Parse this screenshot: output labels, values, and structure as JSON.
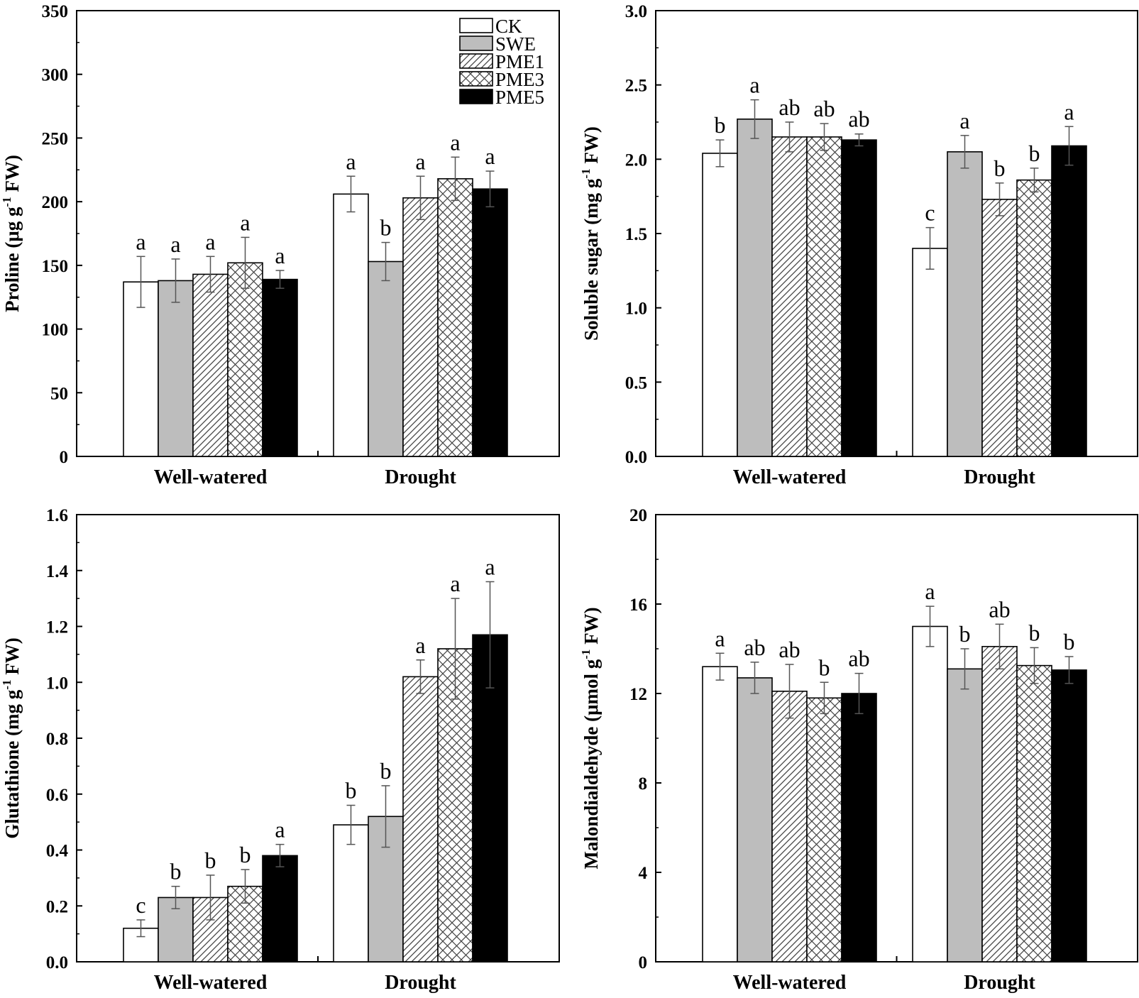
{
  "legend": [
    {
      "name": "CK",
      "pattern": "white"
    },
    {
      "name": "SWE",
      "pattern": "gray"
    },
    {
      "name": "PME1",
      "pattern": "diagonal"
    },
    {
      "name": "PME3",
      "pattern": "crosshatch"
    },
    {
      "name": "PME5",
      "pattern": "black"
    }
  ],
  "colors": {
    "gray_fill": "#bdbdbd",
    "black_fill": "#000000",
    "error_bar": "#555555"
  },
  "chart_data": [
    {
      "type": "bar",
      "title": "",
      "ylabel_main": "Proline (μg g",
      "ylabel_sup": "-1",
      "ylabel_tail": " FW)",
      "categories": [
        "Well-watered",
        "Drought"
      ],
      "ylim": [
        0,
        350
      ],
      "yticks": [
        "0",
        "50",
        "100",
        "150",
        "200",
        "250",
        "300",
        "350"
      ],
      "series": [
        {
          "name": "CK",
          "values": [
            137,
            206
          ],
          "errors": [
            20,
            14
          ],
          "letters": [
            "a",
            "a"
          ]
        },
        {
          "name": "SWE",
          "values": [
            138,
            153
          ],
          "errors": [
            17,
            15
          ],
          "letters": [
            "a",
            "b"
          ]
        },
        {
          "name": "PME1",
          "values": [
            143,
            203
          ],
          "errors": [
            14,
            17
          ],
          "letters": [
            "a",
            "a"
          ]
        },
        {
          "name": "PME3",
          "values": [
            152,
            218
          ],
          "errors": [
            20,
            17
          ],
          "letters": [
            "a",
            "a"
          ]
        },
        {
          "name": "PME5",
          "values": [
            139,
            210
          ],
          "errors": [
            7,
            14
          ],
          "letters": [
            "a",
            "a"
          ]
        }
      ],
      "legend_location": "top-right"
    },
    {
      "type": "bar",
      "title": "",
      "ylabel_main": "Soluble sugar (mg g",
      "ylabel_sup": "-1",
      "ylabel_tail": " FW)",
      "categories": [
        "Well-watered",
        "Drought"
      ],
      "ylim": [
        0,
        3.0
      ],
      "yticks": [
        "0.0",
        "0.5",
        "1.0",
        "1.5",
        "2.0",
        "2.5",
        "3.0"
      ],
      "series": [
        {
          "name": "CK",
          "values": [
            2.04,
            1.4
          ],
          "errors": [
            0.09,
            0.14
          ],
          "letters": [
            "b",
            "c"
          ]
        },
        {
          "name": "SWE",
          "values": [
            2.27,
            2.05
          ],
          "errors": [
            0.13,
            0.11
          ],
          "letters": [
            "a",
            "a"
          ]
        },
        {
          "name": "PME1",
          "values": [
            2.15,
            1.73
          ],
          "errors": [
            0.1,
            0.11
          ],
          "letters": [
            "ab",
            "b"
          ]
        },
        {
          "name": "PME3",
          "values": [
            2.15,
            1.86
          ],
          "errors": [
            0.09,
            0.08
          ],
          "letters": [
            "ab",
            "b"
          ]
        },
        {
          "name": "PME5",
          "values": [
            2.13,
            2.09
          ],
          "errors": [
            0.04,
            0.13
          ],
          "letters": [
            "ab",
            "a"
          ]
        }
      ]
    },
    {
      "type": "bar",
      "title": "",
      "ylabel_main": "Glutathione (mg g",
      "ylabel_sup": "-1",
      "ylabel_tail": " FW)",
      "categories": [
        "Well-watered",
        "Drought"
      ],
      "ylim": [
        0,
        1.6
      ],
      "yticks": [
        "0.0",
        "0.2",
        "0.4",
        "0.6",
        "0.8",
        "1.0",
        "1.2",
        "1.4",
        "1.6"
      ],
      "series": [
        {
          "name": "CK",
          "values": [
            0.12,
            0.49
          ],
          "errors": [
            0.03,
            0.07
          ],
          "letters": [
            "c",
            "b"
          ]
        },
        {
          "name": "SWE",
          "values": [
            0.23,
            0.52
          ],
          "errors": [
            0.04,
            0.11
          ],
          "letters": [
            "b",
            "b"
          ]
        },
        {
          "name": "PME1",
          "values": [
            0.23,
            1.02
          ],
          "errors": [
            0.08,
            0.06
          ],
          "letters": [
            "b",
            "a"
          ]
        },
        {
          "name": "PME3",
          "values": [
            0.27,
            1.12
          ],
          "errors": [
            0.06,
            0.18
          ],
          "letters": [
            "b",
            "a"
          ]
        },
        {
          "name": "PME5",
          "values": [
            0.38,
            1.17
          ],
          "errors": [
            0.04,
            0.19
          ],
          "letters": [
            "a",
            "a"
          ]
        }
      ]
    },
    {
      "type": "bar",
      "title": "",
      "ylabel_main": "Malondialdehyde (μmol g",
      "ylabel_sup": "-1",
      "ylabel_tail": " FW)",
      "categories": [
        "Well-watered",
        "Drought"
      ],
      "ylim": [
        0,
        20
      ],
      "yticks": [
        "0",
        "4",
        "8",
        "12",
        "16",
        "20"
      ],
      "series": [
        {
          "name": "CK",
          "values": [
            13.2,
            15.0
          ],
          "errors": [
            0.6,
            0.9
          ],
          "letters": [
            "a",
            "a"
          ]
        },
        {
          "name": "SWE",
          "values": [
            12.7,
            13.1
          ],
          "errors": [
            0.7,
            0.9
          ],
          "letters": [
            "ab",
            "b"
          ]
        },
        {
          "name": "PME1",
          "values": [
            12.1,
            14.1
          ],
          "errors": [
            1.2,
            1.0
          ],
          "letters": [
            "ab",
            "ab"
          ]
        },
        {
          "name": "PME3",
          "values": [
            11.8,
            13.25
          ],
          "errors": [
            0.7,
            0.8
          ],
          "letters": [
            "b",
            "b"
          ]
        },
        {
          "name": "PME5",
          "values": [
            12.0,
            13.05
          ],
          "errors": [
            0.9,
            0.6
          ],
          "letters": [
            "ab",
            "b"
          ]
        }
      ]
    }
  ]
}
